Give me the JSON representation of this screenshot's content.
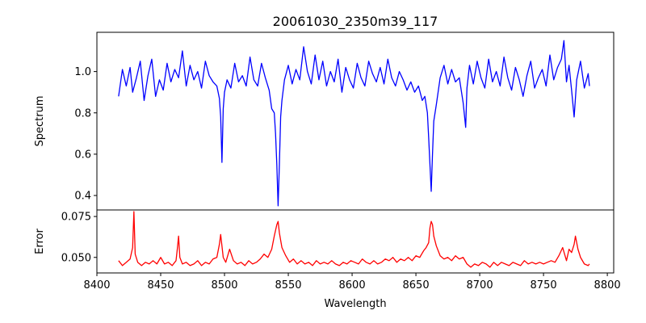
{
  "chart_data": [
    {
      "type": "line",
      "title": "20061030_2350m39_117",
      "xlabel": "",
      "ylabel": "Spectrum",
      "xlim": [
        8400,
        8805
      ],
      "ylim": [
        0.33,
        1.19
      ],
      "yticks": [
        0.4,
        0.6,
        0.8,
        1.0
      ],
      "yticklabels": [
        "0.4",
        "0.6",
        "0.8",
        "1.0"
      ],
      "series": [
        {
          "color": "#0000ff",
          "x": [
            8417,
            8420,
            8423,
            8426,
            8428,
            8431,
            8434,
            8437,
            8440,
            8443,
            8446,
            8449,
            8452,
            8455,
            8458,
            8461,
            8464,
            8467,
            8470,
            8473,
            8476,
            8479,
            8482,
            8485,
            8488,
            8491,
            8494,
            8496,
            8497,
            8498,
            8499,
            8500,
            8502,
            8505,
            8508,
            8511,
            8514,
            8517,
            8520,
            8523,
            8526,
            8529,
            8532,
            8535,
            8537,
            8539,
            8540,
            8541,
            8542,
            8543,
            8544,
            8545,
            8547,
            8550,
            8553,
            8556,
            8559,
            8562,
            8565,
            8568,
            8571,
            8574,
            8577,
            8580,
            8583,
            8586,
            8589,
            8592,
            8595,
            8598,
            8601,
            8604,
            8607,
            8610,
            8613,
            8616,
            8619,
            8622,
            8625,
            8628,
            8631,
            8634,
            8637,
            8640,
            8643,
            8646,
            8649,
            8652,
            8655,
            8657,
            8659,
            8660,
            8661,
            8662,
            8663,
            8664,
            8666,
            8669,
            8672,
            8675,
            8678,
            8681,
            8684,
            8687,
            8689,
            8690,
            8692,
            8695,
            8698,
            8701,
            8704,
            8707,
            8710,
            8713,
            8716,
            8719,
            8722,
            8725,
            8728,
            8731,
            8734,
            8737,
            8740,
            8743,
            8746,
            8749,
            8752,
            8755,
            8758,
            8761,
            8764,
            8766,
            8768,
            8770,
            8772,
            8774,
            8776,
            8779,
            8782,
            8785,
            8786
          ],
          "y": [
            0.88,
            1.01,
            0.93,
            1.02,
            0.9,
            0.97,
            1.05,
            0.86,
            0.98,
            1.06,
            0.88,
            0.96,
            0.91,
            1.04,
            0.95,
            1.01,
            0.97,
            1.1,
            0.93,
            1.03,
            0.96,
            1.0,
            0.92,
            1.05,
            0.98,
            0.95,
            0.93,
            0.87,
            0.78,
            0.56,
            0.82,
            0.9,
            0.96,
            0.92,
            1.04,
            0.95,
            0.98,
            0.93,
            1.07,
            0.96,
            0.93,
            1.04,
            0.97,
            0.91,
            0.82,
            0.8,
            0.7,
            0.55,
            0.35,
            0.55,
            0.78,
            0.86,
            0.96,
            1.03,
            0.94,
            1.01,
            0.96,
            1.12,
            1.0,
            0.94,
            1.08,
            0.96,
            1.05,
            0.93,
            1.0,
            0.95,
            1.06,
            0.9,
            1.02,
            0.96,
            0.92,
            1.04,
            0.97,
            0.93,
            1.05,
            0.99,
            0.95,
            1.02,
            0.94,
            1.06,
            0.97,
            0.93,
            1.0,
            0.96,
            0.91,
            0.95,
            0.9,
            0.93,
            0.86,
            0.88,
            0.8,
            0.68,
            0.55,
            0.42,
            0.6,
            0.76,
            0.84,
            0.97,
            1.03,
            0.94,
            1.01,
            0.95,
            0.97,
            0.85,
            0.73,
            0.92,
            1.03,
            0.94,
            1.05,
            0.97,
            0.92,
            1.06,
            0.95,
            1.0,
            0.93,
            1.07,
            0.97,
            0.91,
            1.02,
            0.96,
            0.88,
            0.98,
            1.05,
            0.92,
            0.97,
            1.01,
            0.93,
            1.08,
            0.96,
            1.02,
            1.06,
            1.15,
            0.95,
            1.03,
            0.91,
            0.78,
            0.96,
            1.05,
            0.92,
            0.99,
            0.93
          ]
        }
      ]
    },
    {
      "type": "line",
      "title": "",
      "xlabel": "Wavelength",
      "ylabel": "Error",
      "xlim": [
        8400,
        8805
      ],
      "ylim": [
        0.0405,
        0.079
      ],
      "xticks": [
        8400,
        8450,
        8500,
        8550,
        8600,
        8650,
        8700,
        8750,
        8800
      ],
      "xticklabels": [
        "8400",
        "8450",
        "8500",
        "8550",
        "8600",
        "8650",
        "8700",
        "8750",
        "8800"
      ],
      "yticks": [
        0.05,
        0.075
      ],
      "yticklabels": [
        "0.050",
        "0.075"
      ],
      "series": [
        {
          "color": "#ff0000",
          "x": [
            8417,
            8420,
            8423,
            8426,
            8428,
            8429,
            8430,
            8432,
            8435,
            8438,
            8441,
            8444,
            8447,
            8450,
            8453,
            8456,
            8459,
            8462,
            8463,
            8464,
            8465,
            8467,
            8470,
            8473,
            8476,
            8479,
            8482,
            8485,
            8488,
            8491,
            8494,
            8496,
            8497,
            8498,
            8499,
            8501,
            8504,
            8507,
            8510,
            8513,
            8516,
            8519,
            8522,
            8525,
            8528,
            8531,
            8534,
            8537,
            8539,
            8541,
            8542,
            8543,
            8545,
            8548,
            8551,
            8554,
            8557,
            8560,
            8563,
            8566,
            8569,
            8572,
            8575,
            8578,
            8581,
            8584,
            8587,
            8590,
            8593,
            8596,
            8599,
            8602,
            8605,
            8608,
            8611,
            8614,
            8617,
            8620,
            8623,
            8626,
            8629,
            8632,
            8635,
            8638,
            8641,
            8644,
            8647,
            8650,
            8653,
            8656,
            8658,
            8660,
            8661,
            8662,
            8663,
            8664,
            8666,
            8669,
            8672,
            8675,
            8678,
            8681,
            8684,
            8687,
            8690,
            8693,
            8696,
            8699,
            8702,
            8705,
            8708,
            8711,
            8714,
            8717,
            8720,
            8723,
            8726,
            8729,
            8732,
            8735,
            8738,
            8741,
            8744,
            8747,
            8750,
            8753,
            8756,
            8759,
            8762,
            8765,
            8768,
            8770,
            8772,
            8774,
            8775,
            8777,
            8779,
            8782,
            8785,
            8786
          ],
          "y": [
            0.048,
            0.045,
            0.047,
            0.049,
            0.056,
            0.078,
            0.052,
            0.047,
            0.045,
            0.047,
            0.046,
            0.048,
            0.046,
            0.05,
            0.046,
            0.047,
            0.045,
            0.048,
            0.055,
            0.063,
            0.05,
            0.046,
            0.047,
            0.045,
            0.046,
            0.048,
            0.045,
            0.047,
            0.046,
            0.049,
            0.05,
            0.058,
            0.064,
            0.057,
            0.05,
            0.047,
            0.055,
            0.048,
            0.046,
            0.047,
            0.045,
            0.048,
            0.046,
            0.047,
            0.049,
            0.052,
            0.05,
            0.055,
            0.063,
            0.07,
            0.072,
            0.065,
            0.056,
            0.051,
            0.047,
            0.049,
            0.046,
            0.048,
            0.046,
            0.047,
            0.045,
            0.048,
            0.046,
            0.047,
            0.046,
            0.048,
            0.046,
            0.045,
            0.047,
            0.046,
            0.048,
            0.047,
            0.046,
            0.049,
            0.047,
            0.046,
            0.048,
            0.046,
            0.047,
            0.049,
            0.048,
            0.05,
            0.047,
            0.049,
            0.048,
            0.05,
            0.048,
            0.051,
            0.05,
            0.054,
            0.056,
            0.059,
            0.068,
            0.072,
            0.07,
            0.063,
            0.057,
            0.051,
            0.049,
            0.05,
            0.048,
            0.051,
            0.049,
            0.05,
            0.046,
            0.044,
            0.046,
            0.045,
            0.047,
            0.046,
            0.044,
            0.047,
            0.045,
            0.047,
            0.046,
            0.045,
            0.047,
            0.046,
            0.045,
            0.048,
            0.046,
            0.047,
            0.046,
            0.047,
            0.046,
            0.047,
            0.048,
            0.047,
            0.051,
            0.056,
            0.048,
            0.055,
            0.053,
            0.058,
            0.063,
            0.055,
            0.05,
            0.046,
            0.045,
            0.046
          ]
        }
      ]
    }
  ]
}
